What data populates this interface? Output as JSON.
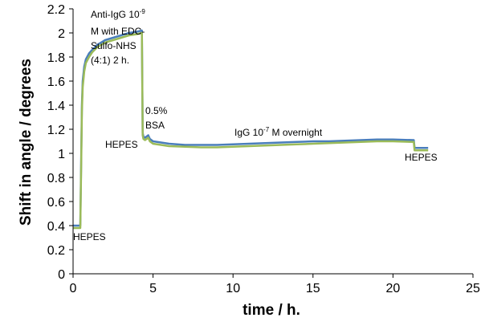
{
  "chart_data": {
    "type": "line",
    "xlabel": "time / h.",
    "ylabel": "Shift in angle / degrees",
    "xlim": [
      0,
      25
    ],
    "ylim": [
      0,
      2.2
    ],
    "x_ticks": [
      0,
      5,
      10,
      15,
      20,
      25
    ],
    "y_ticks": [
      "0",
      "0.2",
      "0.4",
      "0.6",
      "0.8",
      "1",
      "1.2",
      "1.4",
      "1.6",
      "1.8",
      "2",
      "2.2"
    ],
    "grid": false,
    "colors": {
      "series_blue": "#4a7ebb",
      "series_green": "#9bbb59"
    },
    "series": [
      {
        "color": "#4a7ebb",
        "x": [
          0,
          0.45,
          0.5,
          0.55,
          0.6,
          0.7,
          0.8,
          1.0,
          1.2,
          1.5,
          2.0,
          2.5,
          3.0,
          3.5,
          4.0,
          4.3,
          4.35,
          4.4,
          4.5,
          4.7,
          4.8,
          5.0,
          5.5,
          6,
          7,
          8,
          9,
          10,
          11,
          12,
          13,
          14,
          15,
          16,
          17,
          18,
          19,
          20,
          21.3,
          21.35,
          22.2
        ],
        "y": [
          0.4,
          0.4,
          0.9,
          1.4,
          1.6,
          1.72,
          1.78,
          1.83,
          1.86,
          1.9,
          1.94,
          1.96,
          1.98,
          2.0,
          2.01,
          2.02,
          1.17,
          1.14,
          1.13,
          1.15,
          1.12,
          1.1,
          1.09,
          1.08,
          1.07,
          1.07,
          1.07,
          1.075,
          1.08,
          1.085,
          1.09,
          1.095,
          1.1,
          1.1,
          1.105,
          1.11,
          1.115,
          1.115,
          1.11,
          1.045,
          1.045
        ]
      },
      {
        "color": "#9bbb59",
        "x": [
          0,
          0.45,
          0.5,
          0.55,
          0.6,
          0.7,
          0.8,
          1.0,
          1.2,
          1.5,
          2.0,
          2.5,
          3.0,
          3.5,
          4.0,
          4.3,
          4.35,
          4.4,
          4.5,
          4.7,
          4.8,
          5.0,
          5.5,
          6,
          7,
          8,
          9,
          10,
          11,
          12,
          13,
          14,
          15,
          16,
          17,
          18,
          19,
          20,
          21.3,
          21.35,
          22.2
        ],
        "y": [
          0.38,
          0.38,
          0.85,
          1.35,
          1.55,
          1.68,
          1.75,
          1.8,
          1.84,
          1.88,
          1.92,
          1.94,
          1.96,
          1.98,
          1.99,
          2.0,
          1.15,
          1.12,
          1.11,
          1.13,
          1.1,
          1.08,
          1.07,
          1.06,
          1.055,
          1.05,
          1.05,
          1.055,
          1.06,
          1.065,
          1.07,
          1.075,
          1.08,
          1.085,
          1.09,
          1.095,
          1.1,
          1.1,
          1.095,
          1.025,
          1.025
        ]
      }
    ],
    "annotations": {
      "a1_line1": "Anti-IgG 10",
      "a1_sup": "-9",
      "a1_line2": "M with EDC-",
      "a1_line3": "Sulfo-NHS",
      "a1_line4": "(4:1) 2 h.",
      "a2_line1": "0.5%",
      "a2_line2": "BSA",
      "a3": "HEPES",
      "a4_pre": "IgG  10",
      "a4_sup": "-7",
      "a4_post": " M overnight",
      "a5": "HEPES",
      "a6": "HEPES"
    }
  }
}
